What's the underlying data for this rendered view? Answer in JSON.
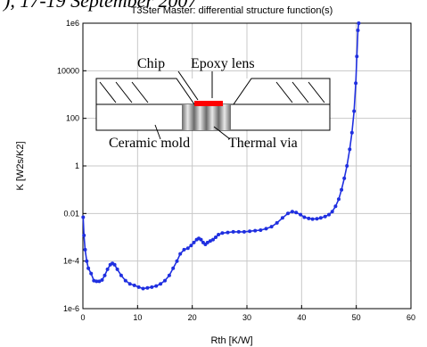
{
  "header": {
    "partial_text": "), 17-19 September 2007"
  },
  "chart_data": {
    "type": "line",
    "title": "T3Ster Master: differential structure function(s)",
    "xlabel": "Rth  [K/W]",
    "ylabel": "K  [W2s/K2]",
    "xlim": [
      0,
      60
    ],
    "ylim": [
      1e-06,
      1000000.0
    ],
    "yscale": "log",
    "grid": true,
    "x_ticks": [
      "0",
      "10",
      "20",
      "30",
      "40",
      "50",
      "60"
    ],
    "y_ticks": [
      "1e-6",
      "1e-4",
      "0.01",
      "1",
      "100",
      "10000",
      "1e6"
    ],
    "series_color": "#1f2fe0",
    "series": [
      {
        "points": [
          [
            0.05,
            0.007
          ],
          [
            0.2,
            0.0012
          ],
          [
            0.4,
            0.0003
          ],
          [
            0.7,
            0.0001
          ],
          [
            1.0,
            5e-05
          ],
          [
            1.5,
            3e-05
          ],
          [
            2.0,
            1.5e-05
          ],
          [
            2.5,
            1.4e-05
          ],
          [
            3.0,
            1.4e-05
          ],
          [
            3.5,
            1.6e-05
          ],
          [
            4.0,
            2.5e-05
          ],
          [
            4.5,
            4.5e-05
          ],
          [
            5.0,
            7e-05
          ],
          [
            5.4,
            8e-05
          ],
          [
            5.8,
            7e-05
          ],
          [
            6.3,
            4.5e-05
          ],
          [
            7.0,
            2.5e-05
          ],
          [
            7.8,
            1.5e-05
          ],
          [
            8.6,
            1.1e-05
          ],
          [
            9.4,
            9.5e-06
          ],
          [
            10.2,
            8e-06
          ],
          [
            11.0,
            7e-06
          ],
          [
            11.8,
            7.5e-06
          ],
          [
            12.6,
            8e-06
          ],
          [
            13.4,
            9e-06
          ],
          [
            14.2,
            1.1e-05
          ],
          [
            15.0,
            1.5e-05
          ],
          [
            15.8,
            2.5e-05
          ],
          [
            16.5,
            5e-05
          ],
          [
            17.2,
            0.0001
          ],
          [
            17.8,
            0.0002
          ],
          [
            18.5,
            0.0003
          ],
          [
            19.2,
            0.00035
          ],
          [
            19.8,
            0.00045
          ],
          [
            20.3,
            0.0006
          ],
          [
            20.8,
            0.0008
          ],
          [
            21.2,
            0.0009
          ],
          [
            21.6,
            0.0008
          ],
          [
            22.0,
            0.0006
          ],
          [
            22.4,
            0.0005
          ],
          [
            22.8,
            0.0006
          ],
          [
            23.3,
            0.0007
          ],
          [
            23.8,
            0.0008
          ],
          [
            24.3,
            0.001
          ],
          [
            24.8,
            0.0013
          ],
          [
            25.5,
            0.0015
          ],
          [
            26.5,
            0.0016
          ],
          [
            27.5,
            0.0017
          ],
          [
            28.5,
            0.0017
          ],
          [
            29.5,
            0.0017
          ],
          [
            30.5,
            0.0018
          ],
          [
            31.5,
            0.0019
          ],
          [
            32.5,
            0.002
          ],
          [
            33.5,
            0.0023
          ],
          [
            34.5,
            0.0028
          ],
          [
            35.5,
            0.004
          ],
          [
            36.5,
            0.0065
          ],
          [
            37.5,
            0.01
          ],
          [
            38.3,
            0.012
          ],
          [
            39.0,
            0.011
          ],
          [
            39.8,
            0.009
          ],
          [
            40.5,
            0.007
          ],
          [
            41.3,
            0.0062
          ],
          [
            42.0,
            0.0058
          ],
          [
            42.8,
            0.006
          ],
          [
            43.5,
            0.0065
          ],
          [
            44.3,
            0.0075
          ],
          [
            45.0,
            0.009
          ],
          [
            45.6,
            0.012
          ],
          [
            46.2,
            0.02
          ],
          [
            46.8,
            0.04
          ],
          [
            47.3,
            0.1
          ],
          [
            47.8,
            0.3
          ],
          [
            48.3,
            1.0
          ],
          [
            48.8,
            5.0
          ],
          [
            49.2,
            25.0
          ],
          [
            49.6,
            200.0
          ],
          [
            49.9,
            3000.0
          ],
          [
            50.1,
            40000.0
          ],
          [
            50.3,
            500000.0
          ],
          [
            50.45,
            1000000.0
          ]
        ]
      }
    ],
    "inset": {
      "chip_label": "Chip",
      "lens_label": "Epoxy lens",
      "mold_label": "Ceramic mold",
      "via_label": "Thermal via",
      "chip_color": "#ff0000"
    }
  }
}
